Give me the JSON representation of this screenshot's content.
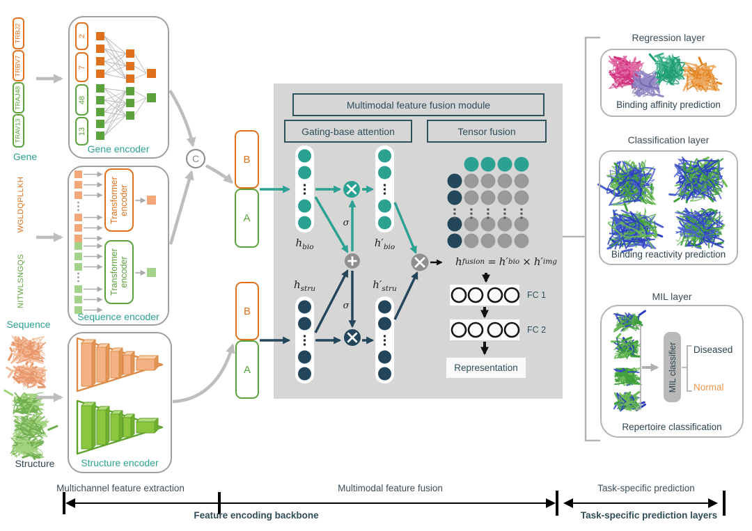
{
  "colors": {
    "teal": "#2BA191",
    "navy": "#24465A",
    "orange": "#E0711C",
    "green": "#5BA13C",
    "light_orange": "#F2A878",
    "light_green": "#A5D28A",
    "slate": "#31505D",
    "grey_bg": "#D6D6D6",
    "grey_arrow": "#BDBDBD",
    "grey_border": "#9F9F9F",
    "grey_node": "#9A9A9A",
    "grey_operator": "#8F8F8F",
    "normal_orange": "#F0954E",
    "funnel_orange": "#F4B184",
    "funnel_green": "#8CC63E"
  },
  "gene_panel": {
    "chips": [
      {
        "label": "TRBJ2"
      },
      {
        "label": "TRBV7"
      },
      {
        "label": "TRAJ48"
      },
      {
        "label": "TRAV13"
      }
    ],
    "caption": "Gene",
    "encoder_title": "Gene encoder",
    "nodes": [
      {
        "label": "2"
      },
      {
        "label": "7"
      },
      {
        "label": "48"
      },
      {
        "label": "13"
      }
    ]
  },
  "sequence_panel": {
    "beta_sequence": "WGLDQPLLKH",
    "alpha_sequence": "NITWLSNGQS",
    "caption": "Sequence",
    "encoder_title": "Sequence encoder",
    "transformer_label": "Transformer encoder"
  },
  "structure_panel": {
    "caption": "Structure",
    "encoder_title": "Structure encoder"
  },
  "concat_label": "C",
  "chains": {
    "beta": "B",
    "alpha": "A"
  },
  "fusion": {
    "module_title": "Multimodal feature fusion module",
    "gating_title": "Gating-base attention",
    "tensor_title": "Tensor fusion",
    "sigma": "σ",
    "h_bio": {
      "base": "h",
      "sub": "bio"
    },
    "h_bio_prime": {
      "base": "h′",
      "sub": "bio"
    },
    "h_stru": {
      "base": "h",
      "sub": "stru"
    },
    "h_stru_prime": {
      "base": "h′",
      "sub": "stru"
    },
    "formula": {
      "lhs": "h",
      "lhs_sub": "fusion",
      "eq": "=",
      "a": "h′",
      "a_sub": "bio",
      "op": "×",
      "b": "h′",
      "b_sub": "img"
    },
    "fc1": "FC 1",
    "fc2": "FC 2",
    "representation": "Representation"
  },
  "tasks": {
    "regression": {
      "title": "Regression layer",
      "caption": "Binding affinity prediction"
    },
    "classification": {
      "title": "Classification layer",
      "caption": "Binding reactivity prediction"
    },
    "mil": {
      "title": "MIL layer",
      "classifier": "MIL classifier",
      "output_positive": "Diseased",
      "output_negative": "Normal",
      "caption": "Repertoire classification"
    }
  },
  "axis": {
    "segment1": "Multichannel feature extraction",
    "segment2": "Multimodal feature fusion",
    "segment3": "Task-specific prediction",
    "backbone": "Feature encoding backbone",
    "prediction": "Task-specific prediction layers"
  }
}
